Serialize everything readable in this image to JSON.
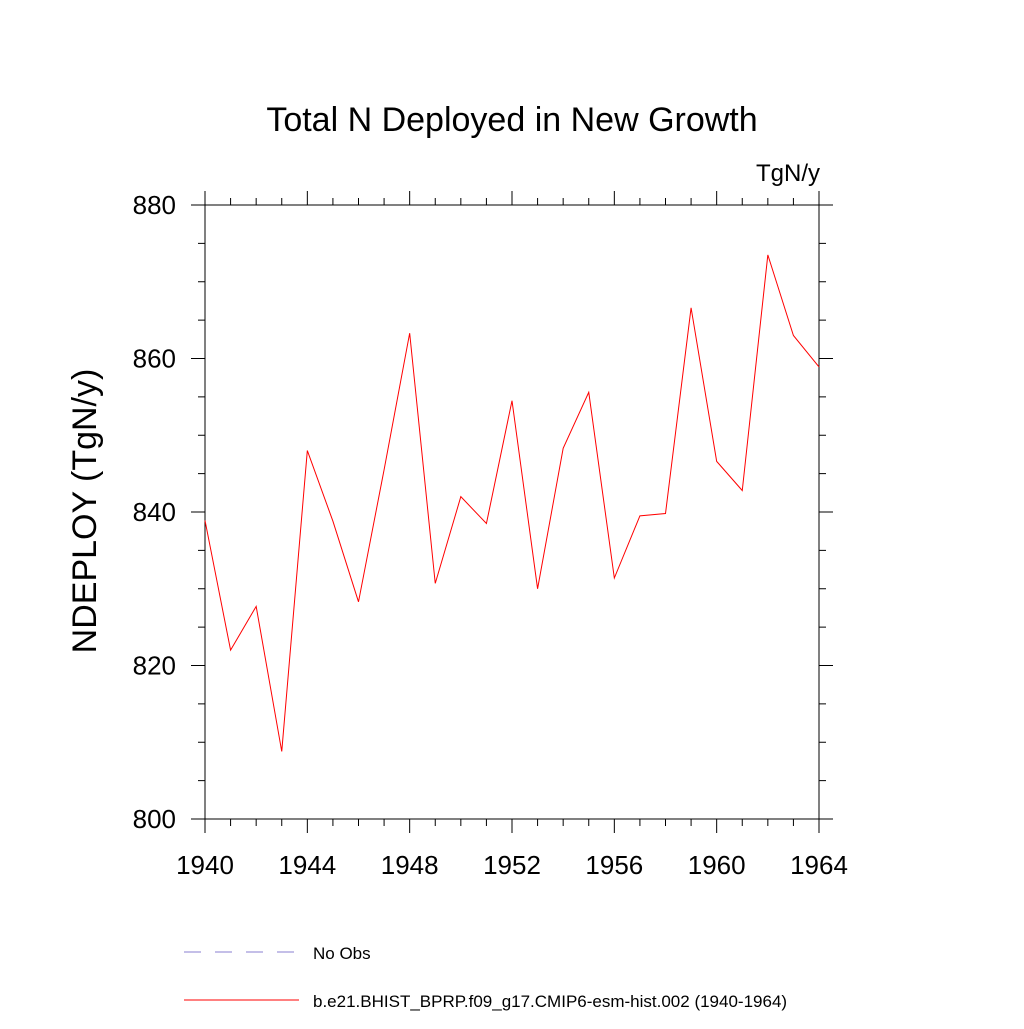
{
  "chart_data": {
    "type": "line",
    "title": "Total N Deployed in New Growth",
    "units_label": "TgN/y",
    "ylabel": "NDEPLOY  (TgN/y)",
    "xlabel": "",
    "xlim": [
      1940,
      1964
    ],
    "ylim": [
      800,
      880
    ],
    "x_ticks": [
      1940,
      1944,
      1948,
      1952,
      1956,
      1960,
      1964
    ],
    "y_ticks": [
      800,
      820,
      840,
      860,
      880
    ],
    "x_tick_labels": [
      "1940",
      "1944",
      "1948",
      "1952",
      "1956",
      "1960",
      "1964"
    ],
    "y_tick_labels": [
      "800",
      "820",
      "840",
      "860",
      "880"
    ],
    "x_minor_step": 1,
    "y_minor_step": 5,
    "grid": false,
    "legend_position": "bottom",
    "series": [
      {
        "name": "b.e21.BHIST_BPRP.f09_g17.CMIP6-esm-hist.002 (1940-1964)",
        "color": "#ff0000",
        "style": "solid",
        "x": [
          1940,
          1941,
          1942,
          1943,
          1944,
          1945,
          1946,
          1947,
          1948,
          1949,
          1950,
          1951,
          1952,
          1953,
          1954,
          1955,
          1956,
          1957,
          1958,
          1959,
          1960,
          1961,
          1962,
          1963,
          1964
        ],
        "y": [
          838.9,
          822.0,
          827.7,
          808.8,
          848.0,
          838.8,
          828.3,
          845.5,
          863.3,
          830.7,
          842.0,
          838.5,
          854.5,
          830.0,
          848.3,
          855.6,
          831.4,
          839.5,
          839.8,
          866.6,
          846.6,
          842.8,
          873.5,
          863.0,
          858.9
        ]
      }
    ],
    "legend": [
      {
        "label": "No Obs",
        "color": "#8a7fd0",
        "style": "dashed"
      },
      {
        "label": "b.e21.BHIST_BPRP.f09_g17.CMIP6-esm-hist.002 (1940-1964)",
        "color": "#ff0000",
        "style": "solid"
      }
    ]
  }
}
